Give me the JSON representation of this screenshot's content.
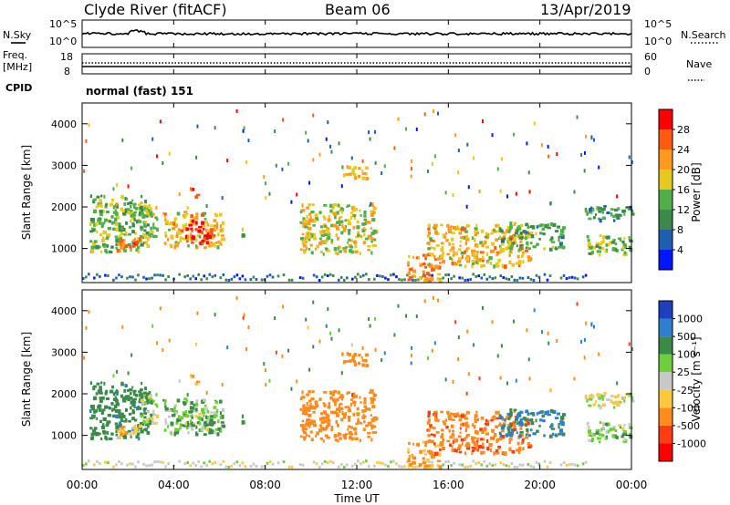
{
  "header": {
    "title": "Clyde River (fitACF)",
    "beam": "Beam 06",
    "date": "13/Apr/2019"
  },
  "noise_panel": {
    "left_label": "N.Sky",
    "right_label": "N.Search",
    "left_ticks": [
      "10^5",
      "10^0"
    ],
    "right_ticks": [
      "10^5",
      "10^0"
    ]
  },
  "freq_panel": {
    "left_label_1": "Freq.",
    "left_label_2": "[MHz]",
    "right_label": "Nave",
    "left_ticks": [
      "18",
      "8"
    ],
    "right_ticks": [
      "60",
      "0"
    ]
  },
  "cpid": {
    "label": "CPID",
    "value": "normal (fast) 151"
  },
  "time_axis": {
    "xlabel": "Time UT",
    "ticks": [
      "00:00",
      "04:00",
      "08:00",
      "12:00",
      "16:00",
      "20:00",
      "00:00"
    ]
  },
  "power_panel": {
    "ylabel": "Slant Range [km]",
    "y_ticks": [
      "1000",
      "2000",
      "3000",
      "4000"
    ],
    "colorbar_label": "Power [dB]",
    "colorbar_ticks": [
      "4",
      "8",
      "12",
      "16",
      "20",
      "24",
      "28"
    ],
    "colors": [
      "#0016ff",
      "#1f5fb0",
      "#3c8a4a",
      "#4fb04a",
      "#e6c81e",
      "#ff9a1e",
      "#ff5a12",
      "#ff0000"
    ]
  },
  "velocity_panel": {
    "ylabel": "Slant Range [km]",
    "y_ticks": [
      "1000",
      "2000",
      "3000",
      "4000"
    ],
    "colorbar_label": "Velocity [m s⁻¹]",
    "colorbar_ticks": [
      "1000",
      "500",
      "100",
      "25",
      "-25",
      "-100",
      "-500",
      "-1000"
    ],
    "colors": [
      "#1f3fbf",
      "#2f7fd0",
      "#3c8a4a",
      "#6fcf3a",
      "#c8c8c8",
      "#ffc83c",
      "#ff8a1e",
      "#ff3c12",
      "#ff0000"
    ]
  },
  "chart_data": {
    "type": "heatmap",
    "x_unit": "hours UT",
    "xlim": [
      0,
      24
    ],
    "ylim_km": [
      180,
      4500
    ],
    "scatter_patches": [
      {
        "t0": 0.3,
        "t1": 2.9,
        "r0": 950,
        "r1": 2300,
        "power_db": 14,
        "velocity": 350
      },
      {
        "t0": 1.5,
        "t1": 2.5,
        "r0": 900,
        "r1": 1300,
        "power_db": 26,
        "velocity": -80
      },
      {
        "t0": 2.5,
        "t1": 3.3,
        "r0": 1300,
        "r1": 2000,
        "power_db": 16,
        "velocity": 50
      },
      {
        "t0": 3.5,
        "t1": 6.1,
        "r0": 1050,
        "r1": 1950,
        "power_db": 20,
        "velocity": 80
      },
      {
        "t0": 4.5,
        "t1": 5.6,
        "r0": 1150,
        "r1": 1700,
        "power_db": 29,
        "velocity": 60
      },
      {
        "t0": 4.7,
        "t1": 5.0,
        "r0": 2250,
        "r1": 2500,
        "power_db": 27,
        "velocity": -120
      },
      {
        "t0": 6.9,
        "t1": 7.1,
        "r0": 1250,
        "r1": 1600,
        "power_db": 13,
        "velocity": 120
      },
      {
        "t0": 9.5,
        "t1": 12.8,
        "r0": 900,
        "r1": 2100,
        "power_db": 18,
        "velocity": -300
      },
      {
        "t0": 11.3,
        "t1": 12.5,
        "r0": 2700,
        "r1": 3000,
        "power_db": 19,
        "velocity": -200
      },
      {
        "t0": 14.2,
        "t1": 15.6,
        "r0": 250,
        "r1": 900,
        "power_db": 23,
        "velocity": -150
      },
      {
        "t0": 15.0,
        "t1": 19.5,
        "r0": 600,
        "r1": 1600,
        "power_db": 20,
        "velocity": -400
      },
      {
        "t0": 18.2,
        "t1": 21.0,
        "r0": 1000,
        "r1": 1650,
        "power_db": 12,
        "velocity": 600
      },
      {
        "t0": 22.0,
        "t1": 24.0,
        "r0": 850,
        "r1": 1350,
        "power_db": 15,
        "velocity": 50
      },
      {
        "t0": 21.8,
        "t1": 24.0,
        "r0": 1700,
        "r1": 2050,
        "power_db": 11,
        "velocity": 0
      }
    ]
  }
}
